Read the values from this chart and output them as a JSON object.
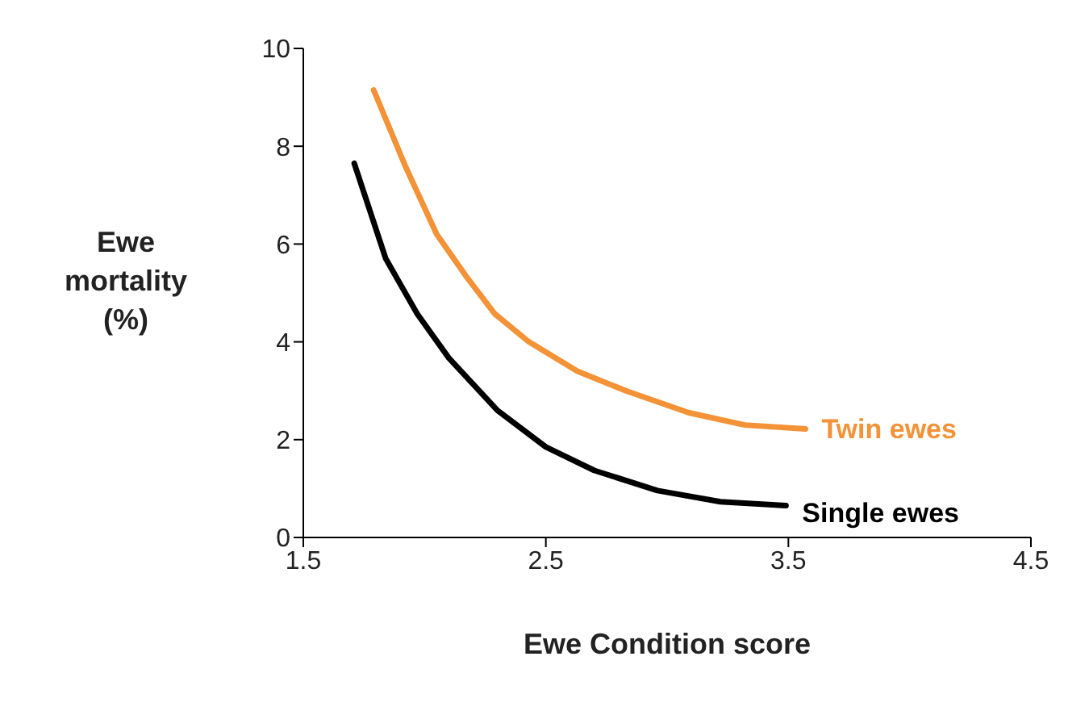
{
  "chart_data": {
    "type": "line",
    "xlabel": "Ewe Condition score",
    "ylabel": "Ewe mortality (%)",
    "xlim": [
      1.5,
      4.5
    ],
    "xticks": [
      1.5,
      2.5,
      3.5,
      4.5
    ],
    "ylim": [
      0,
      10
    ],
    "yticks": [
      0,
      2,
      4,
      6,
      8,
      10
    ],
    "grid": false,
    "legend": false,
    "marker": "none",
    "series": [
      {
        "name": "Twin ewes",
        "color": "#f39237",
        "x": [
          1.79,
          1.92,
          2.05,
          2.17,
          2.29,
          2.43,
          2.63,
          2.83,
          3.09,
          3.32,
          3.57
        ],
        "values": [
          9.15,
          7.6,
          6.2,
          5.35,
          4.57,
          4.0,
          3.4,
          3.0,
          2.55,
          2.3,
          2.22
        ]
      },
      {
        "name": "Single ewes",
        "color": "#000000",
        "x": [
          1.71,
          1.84,
          1.97,
          2.1,
          2.3,
          2.5,
          2.7,
          2.96,
          3.22,
          3.49
        ],
        "values": [
          7.65,
          5.7,
          4.57,
          3.67,
          2.6,
          1.85,
          1.37,
          0.96,
          0.73,
          0.65
        ]
      }
    ]
  }
}
